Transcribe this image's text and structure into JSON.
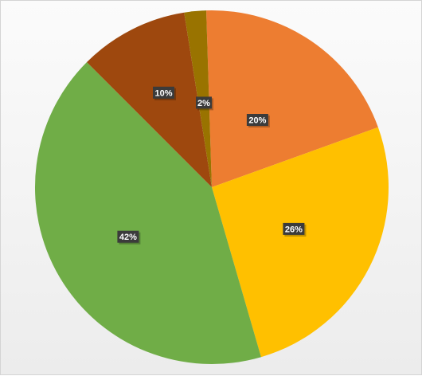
{
  "chart_data": {
    "type": "pie",
    "title": "",
    "slices": [
      {
        "label": "20%",
        "value": 20,
        "color": "#ED7D31"
      },
      {
        "label": "26%",
        "value": 26,
        "color": "#FFC000"
      },
      {
        "label": "42%",
        "value": 42,
        "color": "#70AD47"
      },
      {
        "label": "10%",
        "value": 10,
        "color": "#9E480E"
      },
      {
        "label": "2%",
        "value": 2,
        "color": "#997300"
      }
    ],
    "data_labels": true,
    "legend": "none"
  }
}
